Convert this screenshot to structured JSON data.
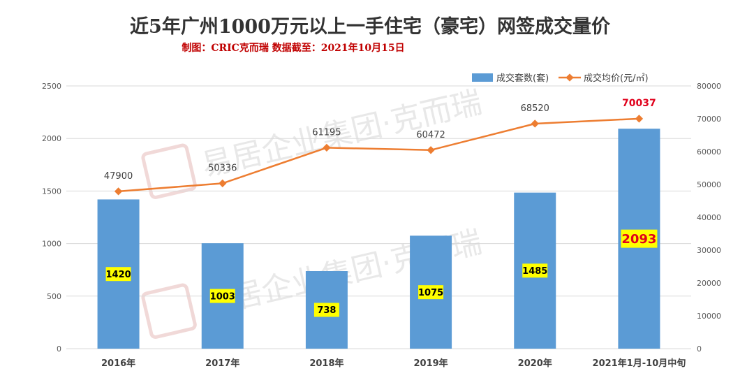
{
  "chart_data": {
    "type": "bar",
    "title": "近5年广州1000万元以上一手住宅（豪宅）网签成交量价",
    "subtitle": "制图：CRIC克而瑞    数据截至：2021年10月15日",
    "categories": [
      "2016年",
      "2017年",
      "2018年",
      "2019年",
      "2020年",
      "2021年1月-10月中旬"
    ],
    "series": [
      {
        "name": "成交套数(套)",
        "kind": "bar",
        "axis": "left",
        "color": "#5B9BD5",
        "values": [
          1420,
          1003,
          738,
          1075,
          1485,
          2093
        ]
      },
      {
        "name": "成交均价(元/㎡)",
        "kind": "line",
        "axis": "right",
        "color": "#ED7D31",
        "values": [
          47900,
          50336,
          61195,
          60472,
          68520,
          70037
        ]
      }
    ],
    "ylim": [
      0,
      2500
    ],
    "yticks": [
      0,
      500,
      1000,
      1500,
      2000,
      2500
    ],
    "y2lim": [
      0,
      80000
    ],
    "y2ticks": [
      0,
      10000,
      20000,
      30000,
      40000,
      50000,
      60000,
      70000,
      80000
    ],
    "grid": true,
    "legend_position": "top-right",
    "highlight_last": true,
    "label_box_color": "#FFFF00",
    "highlight_color": "#E0001B"
  },
  "watermark": "易居企业集团·克而瑞"
}
